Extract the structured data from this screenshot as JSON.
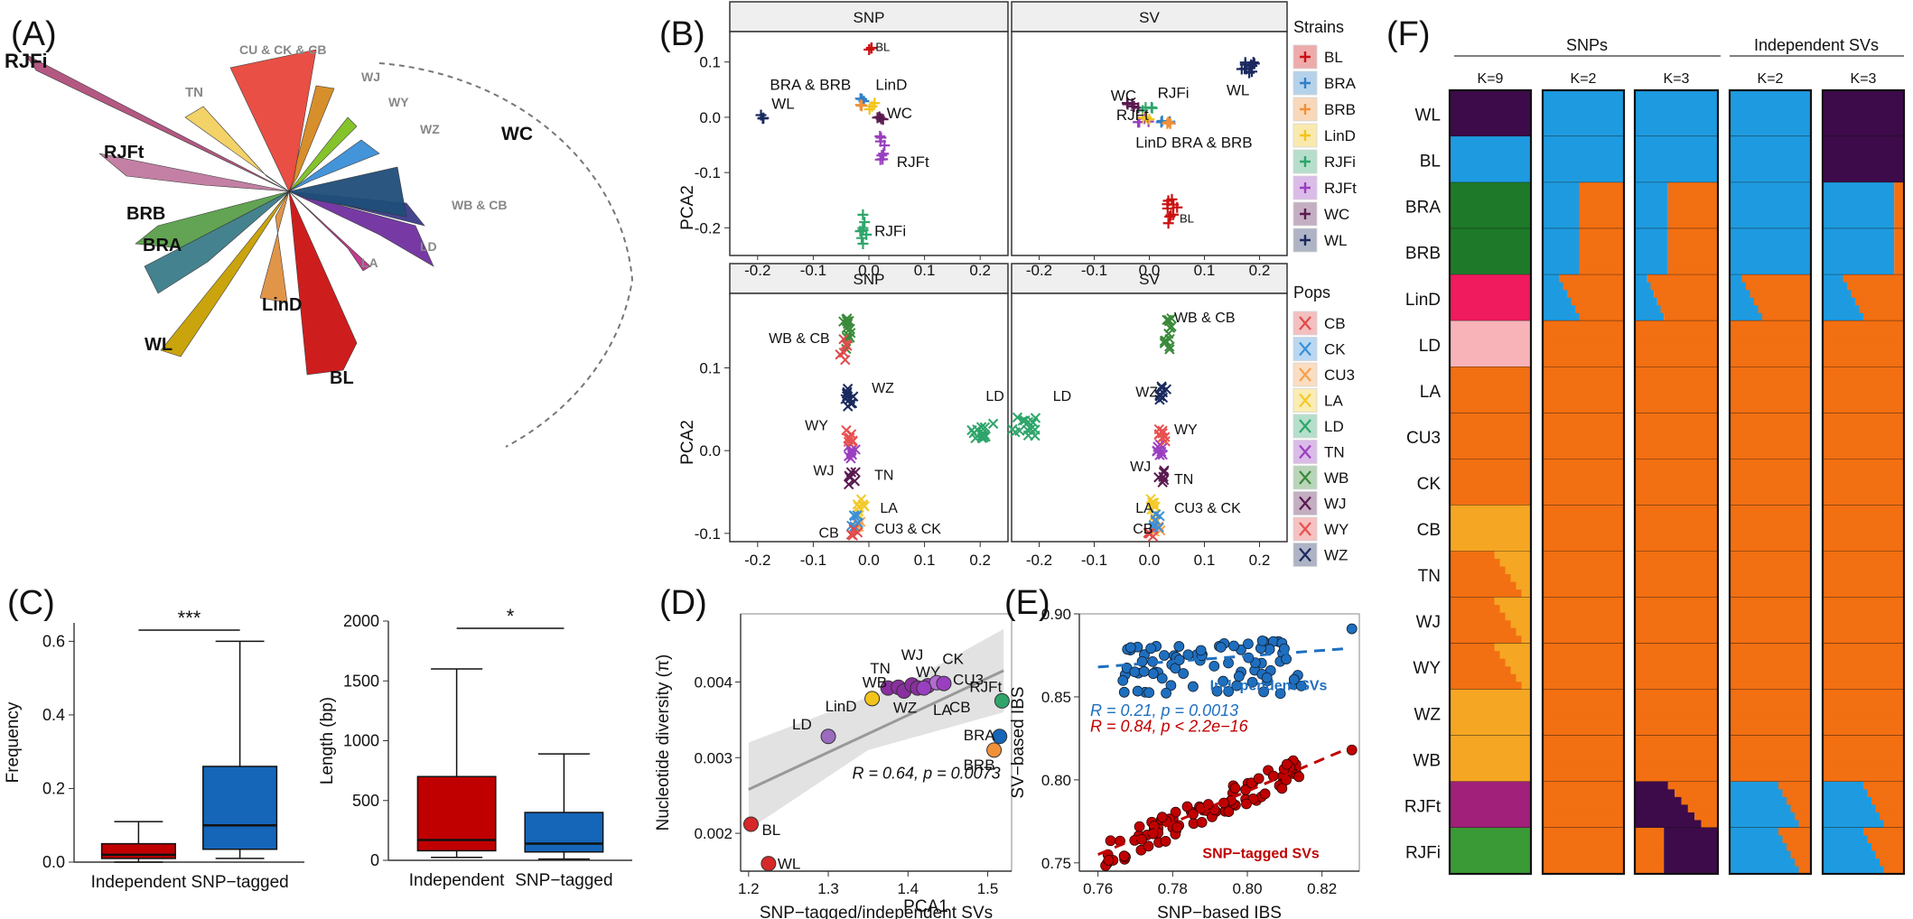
{
  "panels": {
    "A": {
      "label": "(A)",
      "clade_labels": [
        {
          "text": "RJFi",
          "color": "#111"
        },
        {
          "text": "RJFt",
          "color": "#111"
        },
        {
          "text": "BRB",
          "color": "#111"
        },
        {
          "text": "BRA",
          "color": "#111"
        },
        {
          "text": "WL",
          "color": "#111"
        },
        {
          "text": "LinD",
          "color": "#111"
        },
        {
          "text": "BL",
          "color": "#111"
        },
        {
          "text": "TN",
          "color": "#888"
        },
        {
          "text": "CU & CK & CB",
          "color": "#888"
        },
        {
          "text": "WJ",
          "color": "#888"
        },
        {
          "text": "WY",
          "color": "#888"
        },
        {
          "text": "WZ",
          "color": "#888"
        },
        {
          "text": "WC",
          "color": "#111"
        },
        {
          "text": "WB & CB",
          "color": "#888"
        },
        {
          "text": "LD",
          "color": "#888"
        },
        {
          "text": "LA",
          "color": "#888"
        }
      ]
    },
    "B": {
      "label": "(B)",
      "facets": [
        "SNP",
        "SV",
        "SNP",
        "SV"
      ],
      "xlabel": "PCA1",
      "ylabel": "PCA2",
      "strains_title": "Strains",
      "strains": [
        {
          "name": "BL",
          "color": "#cc1111"
        },
        {
          "name": "BRA",
          "color": "#2f7fc8"
        },
        {
          "name": "BRB",
          "color": "#f0913a"
        },
        {
          "name": "LinD",
          "color": "#f2c31a"
        },
        {
          "name": "RJFi",
          "color": "#2fa56b"
        },
        {
          "name": "RJFt",
          "color": "#9a3fbf"
        },
        {
          "name": "WC",
          "color": "#5a1a50"
        },
        {
          "name": "WL",
          "color": "#1b2a5e"
        }
      ],
      "pops_title": "Pops",
      "pops": [
        {
          "name": "CB",
          "color": "#e04a4a"
        },
        {
          "name": "CK",
          "color": "#3a8fd8"
        },
        {
          "name": "CU3",
          "color": "#f5a050"
        },
        {
          "name": "LA",
          "color": "#f3c92b"
        },
        {
          "name": "LD",
          "color": "#2fa56b"
        },
        {
          "name": "TN",
          "color": "#9a3fbf"
        },
        {
          "name": "WB",
          "color": "#3a8a3a"
        },
        {
          "name": "WJ",
          "color": "#5a1a50"
        },
        {
          "name": "WY",
          "color": "#e85050"
        },
        {
          "name": "WZ",
          "color": "#1b2a5e"
        }
      ],
      "top_snp_labels": [
        "BL",
        "BRA & BRB",
        "LinD",
        "WC",
        "WL",
        "RJFt",
        "RJFi"
      ],
      "top_sv_labels": [
        "WL",
        "WC",
        "RJFi",
        "RJFt",
        "LinD",
        "BRA & BRB",
        "BL"
      ],
      "bot_snp_labels": [
        "WB & CB",
        "WZ",
        "LD",
        "WY",
        "WJ",
        "TN",
        "LA",
        "CU3 & CK",
        "CB"
      ],
      "bot_sv_labels": [
        "WB & CB",
        "WZ",
        "LD",
        "WY",
        "WJ",
        "TN",
        "LA",
        "CU3 & CK",
        "CB"
      ],
      "x_ticks": [
        "-0.2",
        "-0.1",
        "0.0",
        "0.1",
        "0.2"
      ],
      "top_y_ticks": [
        "0.1",
        "0.0",
        "-0.1",
        "-0.2"
      ],
      "bot_y_ticks": [
        "0.1",
        "0.0",
        "-0.1"
      ]
    },
    "C": {
      "label": "(C)",
      "left": {
        "ylabel": "Frequency",
        "categories": [
          "Independent",
          "SNP−tagged"
        ],
        "y_ticks": [
          "0.0",
          "0.2",
          "0.4",
          "0.6"
        ],
        "significance": "***",
        "boxes": [
          {
            "min": 0.0,
            "q1": 0.01,
            "median": 0.02,
            "q3": 0.05,
            "max": 0.11,
            "color": "#c00000"
          },
          {
            "min": 0.01,
            "q1": 0.035,
            "median": 0.1,
            "q3": 0.26,
            "max": 0.6,
            "color": "#1565b8"
          }
        ]
      },
      "right": {
        "ylabel": "Length (bp)",
        "categories": [
          "Independent",
          "SNP−tagged"
        ],
        "y_ticks": [
          "0",
          "500",
          "1000",
          "1500",
          "2000"
        ],
        "significance": "*",
        "boxes": [
          {
            "min": 25,
            "q1": 80,
            "median": 170,
            "q3": 700,
            "max": 1600,
            "color": "#c00000"
          },
          {
            "min": 10,
            "q1": 70,
            "median": 140,
            "q3": 400,
            "max": 890,
            "color": "#1565b8"
          }
        ]
      }
    },
    "D": {
      "label": "(D)",
      "xlabel": "SNP−tagged/independent SVs",
      "ylabel": "Nucleotide diversity (π)",
      "x_ticks": [
        "1.2",
        "1.3",
        "1.4",
        "1.5"
      ],
      "y_ticks": [
        "0.002",
        "0.003",
        "0.004"
      ],
      "stat": "R = 0.64, p = 0.0073",
      "points": [
        {
          "label": "BL",
          "x": 1.203,
          "y": 0.00212,
          "color": "#d62828"
        },
        {
          "label": "WL",
          "x": 1.225,
          "y": 0.0016,
          "color": "#d62828"
        },
        {
          "label": "LD",
          "x": 1.3,
          "y": 0.00328,
          "color": "#9a6bbf"
        },
        {
          "label": "LinD",
          "x": 1.355,
          "y": 0.00378,
          "color": "#f2c31a"
        },
        {
          "label": "TN",
          "x": 1.375,
          "y": 0.00392,
          "color": "#8a2f9f"
        },
        {
          "label": "WB",
          "x": 1.388,
          "y": 0.00393,
          "color": "#8a2f9f"
        },
        {
          "label": "WZ",
          "x": 1.395,
          "y": 0.00388,
          "color": "#8a2f9f"
        },
        {
          "label": "WJ",
          "x": 1.405,
          "y": 0.00396,
          "color": "#8a2f9f"
        },
        {
          "label": "WY",
          "x": 1.412,
          "y": 0.00392,
          "color": "#8a2f9f"
        },
        {
          "label": "CK",
          "x": 1.425,
          "y": 0.00395,
          "color": "#9a3fbf"
        },
        {
          "label": "CU3",
          "x": 1.436,
          "y": 0.00399,
          "color": "#b36bd2"
        },
        {
          "label": "LA",
          "x": 1.42,
          "y": 0.00392,
          "color": "#9a3fbf"
        },
        {
          "label": "CB",
          "x": 1.445,
          "y": 0.00398,
          "color": "#9a3fbf"
        },
        {
          "label": "RJFt",
          "x": 1.518,
          "y": 0.00375,
          "color": "#2fa56b"
        },
        {
          "label": "BRA",
          "x": 1.515,
          "y": 0.00328,
          "color": "#1565b8"
        },
        {
          "label": "BRB",
          "x": 1.508,
          "y": 0.0031,
          "color": "#f0913a"
        }
      ]
    },
    "E": {
      "label": "(E)",
      "xlabel": "SNP−based IBS",
      "ylabel": "SV−based IBS",
      "x_ticks": [
        "0.76",
        "0.78",
        "0.80",
        "0.82"
      ],
      "y_ticks": [
        "0.75",
        "0.80",
        "0.85",
        "0.90"
      ],
      "stat_blue": "R = 0.21, p = 0.0013",
      "stat_red": "R = 0.84, p < 2.2e−16",
      "label_blue": "Independent SVs",
      "label_red": "SNP−tagged SVs"
    },
    "F": {
      "label": "(F)",
      "group_snps": "SNPs",
      "group_svs": "Independent SVs",
      "k_labels": [
        "K=9",
        "K=2",
        "K=3",
        "K=2",
        "K=3"
      ],
      "rows": [
        "WL",
        "BL",
        "BRA",
        "BRB",
        "LinD",
        "LD",
        "LA",
        "CU3",
        "CK",
        "CB",
        "TN",
        "WJ",
        "WY",
        "WZ",
        "WB",
        "RJFt",
        "RJFi"
      ]
    }
  }
}
